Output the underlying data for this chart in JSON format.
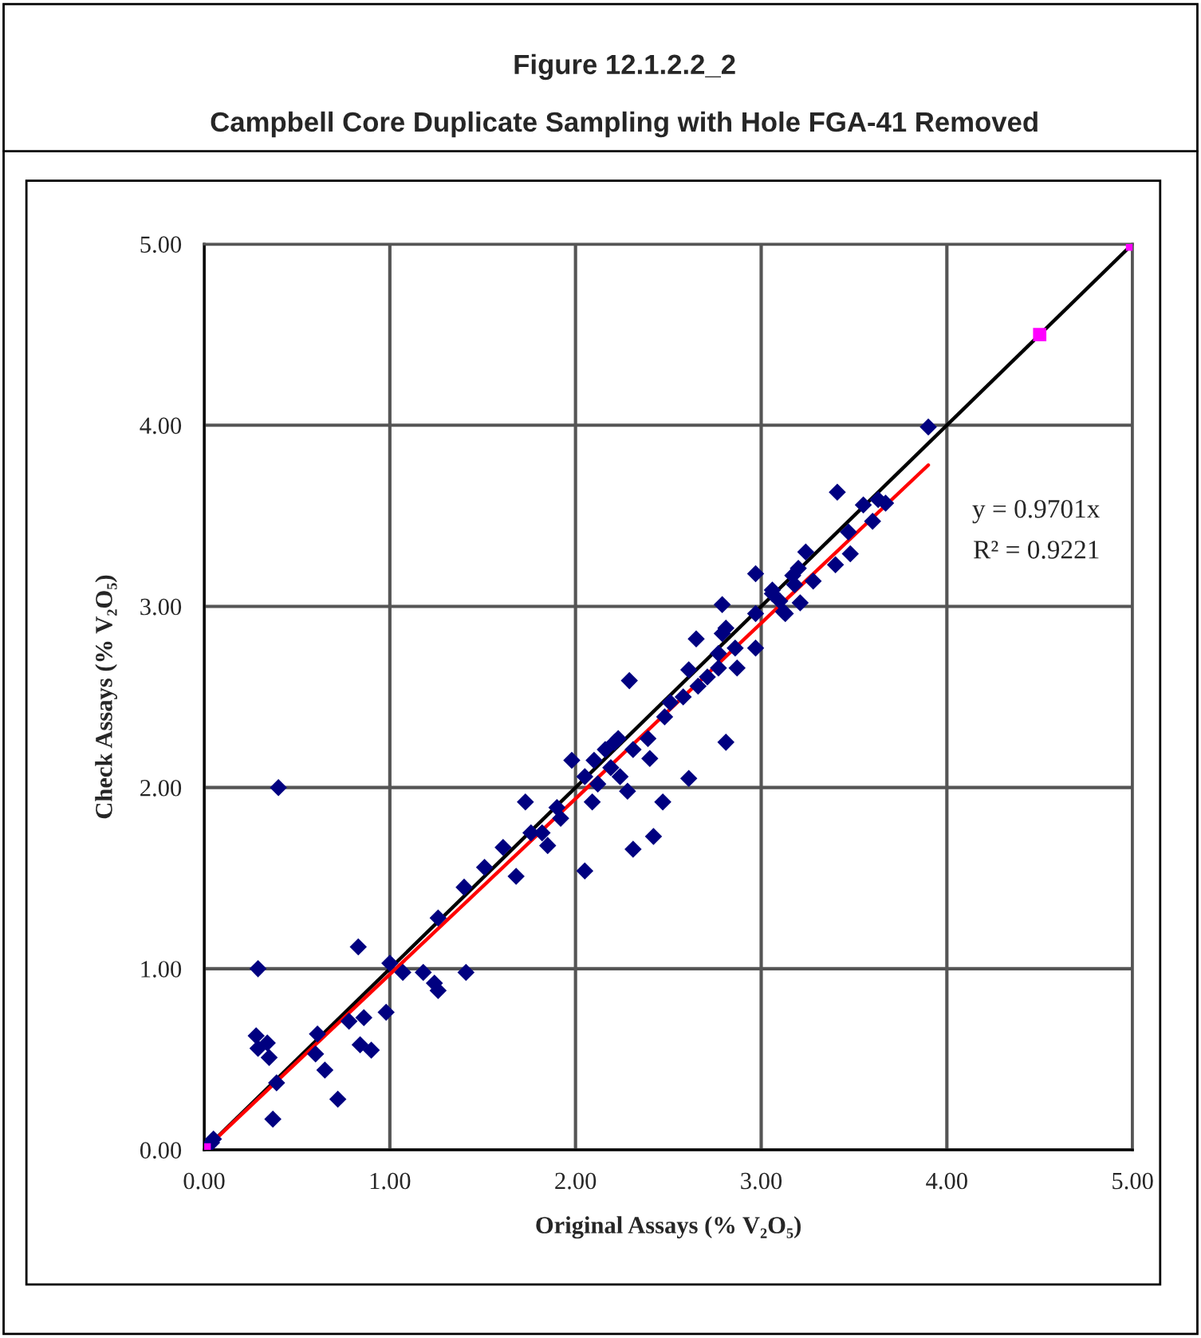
{
  "chart_data": {
    "type": "scatter",
    "title": "Figure 12.1.2.2_2",
    "subtitle": "Campbell Core Duplicate Sampling with Hole FGA-41 Removed",
    "xlabel": "Original Assays (% V₂O₅)",
    "ylabel": "Check Assays (% V₂O₅)",
    "xlim": [
      0,
      5
    ],
    "ylim": [
      0,
      5
    ],
    "xticks": [
      {
        "value": 0,
        "label": "0.00"
      },
      {
        "value": 1,
        "label": "1.00"
      },
      {
        "value": 2,
        "label": "2.00"
      },
      {
        "value": 3,
        "label": "3.00"
      },
      {
        "value": 4,
        "label": "4.00"
      },
      {
        "value": 5,
        "label": "5.00"
      }
    ],
    "yticks": [
      {
        "value": 0,
        "label": "0.00"
      },
      {
        "value": 1,
        "label": "1.00"
      },
      {
        "value": 2,
        "label": "2.00"
      },
      {
        "value": 3,
        "label": "3.00"
      },
      {
        "value": 4,
        "label": "4.00"
      },
      {
        "value": 5,
        "label": "5.00"
      }
    ],
    "grid": true,
    "legend": false,
    "annotations": [
      "y = 0.9701x",
      "R² = 0.9221"
    ],
    "series": [
      {
        "color": "#000080",
        "marker": "diamond",
        "x": [
          0.04,
          0.29,
          0.4,
          0.28,
          0.34,
          0.29,
          0.35,
          0.39,
          0.37,
          0.05,
          0.83,
          0.61,
          0.6,
          0.65,
          0.72,
          0.78,
          0.86,
          0.84,
          0.9,
          0.98,
          1.0,
          1.07,
          1.18,
          1.24,
          1.26,
          1.41,
          1.26,
          1.4,
          1.51,
          1.61,
          1.68,
          1.73,
          1.76,
          1.82,
          1.85,
          1.9,
          1.92,
          2.05,
          1.98,
          2.05,
          2.09,
          2.12,
          2.1,
          2.16,
          2.21,
          2.23,
          2.19,
          2.24,
          2.28,
          2.31,
          2.29,
          2.39,
          2.4,
          2.31,
          2.42,
          2.47,
          2.61,
          2.48,
          2.51,
          2.58,
          2.61,
          2.65,
          2.66,
          2.71,
          2.77,
          2.87,
          2.81,
          2.79,
          2.81,
          2.79,
          2.86,
          2.77,
          2.97,
          2.97,
          2.97,
          3.06,
          3.13,
          3.9,
          3.41,
          3.55,
          3.63,
          3.67,
          3.6,
          3.47,
          3.24,
          3.48,
          3.4,
          3.2,
          3.17,
          3.28,
          3.18,
          3.06,
          3.1,
          3.21,
          3.12
        ],
        "values": [
          0.04,
          1.0,
          2.0,
          0.63,
          0.59,
          0.56,
          0.51,
          0.37,
          0.17,
          0.06,
          1.12,
          0.64,
          0.53,
          0.44,
          0.28,
          0.71,
          0.73,
          0.58,
          0.55,
          0.76,
          1.03,
          0.98,
          0.98,
          0.92,
          0.88,
          0.98,
          1.28,
          1.45,
          1.56,
          1.67,
          1.51,
          1.92,
          1.75,
          1.75,
          1.68,
          1.89,
          1.83,
          1.54,
          2.15,
          2.06,
          1.92,
          2.02,
          2.15,
          2.21,
          2.25,
          2.27,
          2.11,
          2.06,
          1.98,
          2.21,
          2.59,
          2.27,
          2.16,
          1.66,
          1.73,
          1.92,
          2.05,
          2.39,
          2.47,
          2.5,
          2.65,
          2.82,
          2.56,
          2.61,
          2.66,
          2.66,
          2.25,
          2.85,
          2.88,
          3.01,
          2.77,
          2.74,
          3.18,
          2.77,
          2.96,
          3.07,
          2.96,
          3.99,
          3.63,
          3.56,
          3.59,
          3.57,
          3.47,
          3.41,
          3.3,
          3.29,
          3.23,
          3.21,
          3.17,
          3.14,
          3.12,
          3.09,
          3.03,
          3.02,
          2.97
        ]
      },
      {
        "color": "#ff00ff",
        "marker": "square",
        "x": [
          0,
          4.5,
          5
        ],
        "values": [
          0,
          4.5,
          5
        ]
      },
      {
        "type": "line",
        "color": "#000000",
        "marker": "none",
        "line_style": "solid",
        "x": [
          0,
          5
        ],
        "values": [
          0,
          5
        ]
      },
      {
        "type": "line",
        "color": "#ff0000",
        "marker": "none",
        "line_style": "solid",
        "x": [
          0,
          3.9
        ],
        "values": [
          0,
          3.78
        ]
      }
    ]
  }
}
